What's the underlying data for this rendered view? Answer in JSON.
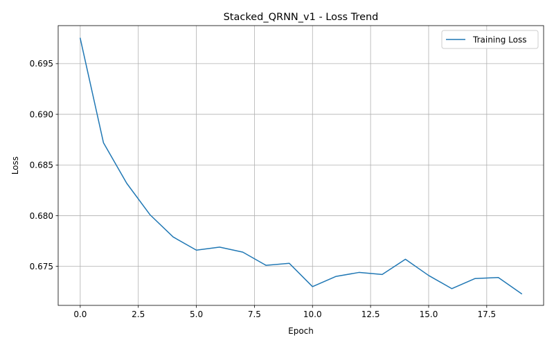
{
  "chart_data": {
    "type": "line",
    "title": "Stacked_QRNN_v1 - Loss Trend",
    "xlabel": "Epoch",
    "ylabel": "Loss",
    "xlim": [
      -0.95,
      19.95
    ],
    "ylim": [
      0.67115,
      0.69875
    ],
    "xticks": [
      0.0,
      2.5,
      5.0,
      7.5,
      10.0,
      12.5,
      15.0,
      17.5
    ],
    "xtick_labels": [
      "0.0",
      "2.5",
      "5.0",
      "7.5",
      "10.0",
      "12.5",
      "15.0",
      "17.5"
    ],
    "yticks": [
      0.675,
      0.68,
      0.685,
      0.69,
      0.695
    ],
    "ytick_labels": [
      "0.675",
      "0.680",
      "0.685",
      "0.690",
      "0.695"
    ],
    "grid": true,
    "legend_position": "top-right",
    "series": [
      {
        "name": "Training Loss",
        "color": "#1f77b4",
        "x": [
          0,
          1,
          2,
          3,
          4,
          5,
          6,
          7,
          8,
          9,
          10,
          11,
          12,
          13,
          14,
          15,
          16,
          17,
          18,
          19
        ],
        "y": [
          0.6975,
          0.6872,
          0.6832,
          0.6801,
          0.6779,
          0.6766,
          0.6769,
          0.6764,
          0.6751,
          0.6753,
          0.673,
          0.674,
          0.6744,
          0.6742,
          0.6757,
          0.6741,
          0.6728,
          0.6738,
          0.6739,
          0.6723
        ]
      }
    ]
  }
}
